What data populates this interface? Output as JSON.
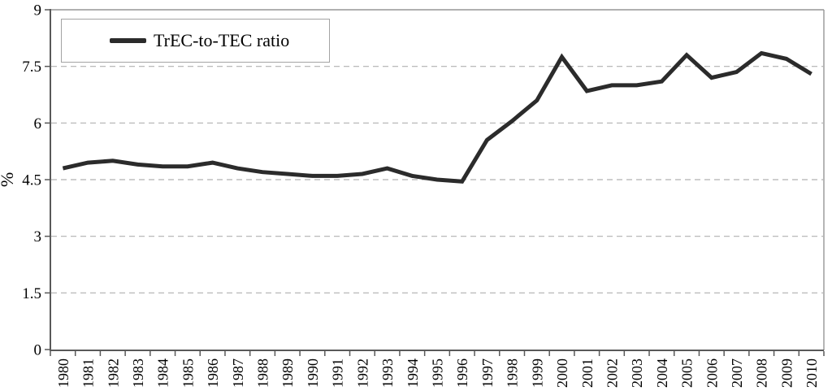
{
  "chart_data": {
    "type": "line",
    "title": "",
    "xlabel": "",
    "ylabel": "%",
    "ylim": [
      0,
      9
    ],
    "y_ticks": [
      0,
      1.5,
      3,
      4.5,
      6,
      7.5,
      9
    ],
    "y_tick_labels": [
      "0",
      "1.5",
      "3",
      "4.5",
      "6",
      "7.5",
      "9"
    ],
    "grid": "horizontal dashed gridlines",
    "legend_position": "top-left inside plot",
    "categories": [
      "1980",
      "1981",
      "1982",
      "1983",
      "1984",
      "1985",
      "1986",
      "1987",
      "1988",
      "1989",
      "1990",
      "1991",
      "1992",
      "1993",
      "1994",
      "1995",
      "1996",
      "1997",
      "1998",
      "1999",
      "2000",
      "2001",
      "2002",
      "2003",
      "2004",
      "2005",
      "2006",
      "2007",
      "2008",
      "2009",
      "2010"
    ],
    "series": [
      {
        "name": "TrEC-to-TEC ratio",
        "color": "#2b2b2b",
        "values": [
          4.8,
          4.95,
          5.0,
          4.9,
          4.85,
          4.85,
          4.95,
          4.8,
          4.7,
          4.65,
          4.6,
          4.6,
          4.65,
          4.8,
          4.6,
          4.5,
          4.45,
          5.55,
          6.05,
          6.6,
          7.75,
          6.85,
          7.0,
          7.0,
          7.1,
          7.8,
          7.2,
          7.35,
          7.85,
          7.7,
          7.3
        ]
      }
    ]
  },
  "colors": {
    "background": "#ffffff",
    "series_line": "#2b2b2b",
    "gridline": "#b0b0b0",
    "axis": "#595959",
    "plot_border": "#969696",
    "text": "#000000"
  }
}
